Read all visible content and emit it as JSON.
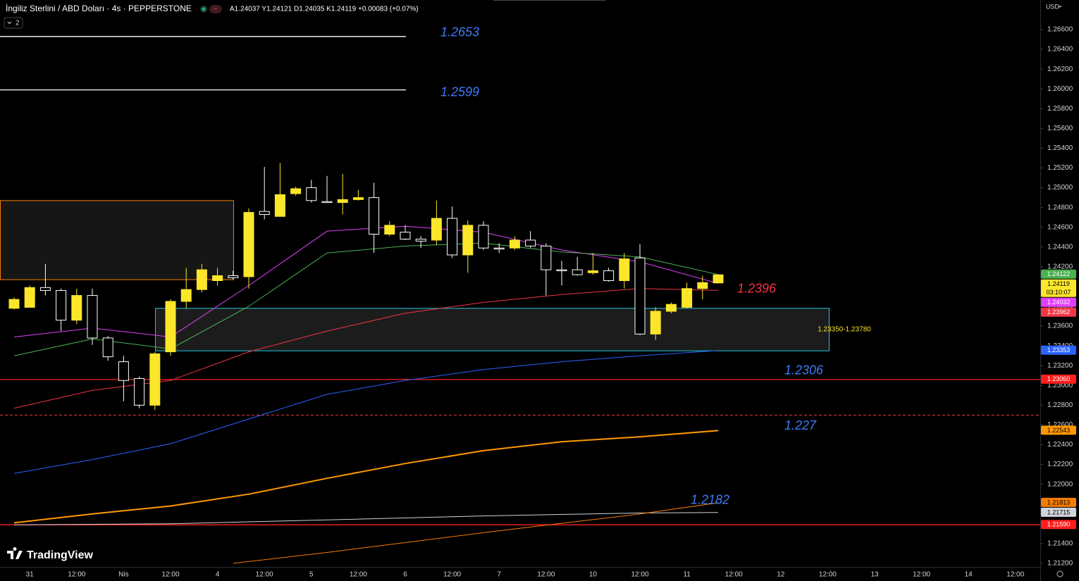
{
  "header": {
    "symbol": "İngiliz Sterlini / ABD Doları · 4s · PEPPERSTONE",
    "ohlc": "A1.24037 Y1.24121 D1.24035 K1.24119 +0.00083 (+0.07%)",
    "indicators": "2"
  },
  "currency": "USD",
  "logo": "TradingView",
  "chart_data": {
    "type": "candlestick",
    "categories": [
      null,
      "31",
      null,
      null,
      "12:00",
      null,
      null,
      "Nis",
      null,
      null,
      "12:00",
      null,
      null,
      "4",
      null,
      null,
      "12:00",
      null,
      null,
      "5",
      null,
      null,
      "12:00",
      null,
      null,
      "6",
      null,
      null,
      "12:00",
      null,
      null,
      "7",
      null,
      null,
      "12:00",
      null,
      null,
      "10",
      null,
      null,
      "12:00",
      null,
      null,
      "11",
      null,
      null,
      "12:00",
      null,
      null,
      "12",
      null,
      null,
      "12:00",
      null,
      null,
      "13",
      null,
      null,
      "12:00",
      null,
      null,
      "14",
      null,
      null,
      "12:00"
    ],
    "open": [
      1.2378,
      1.2379,
      1.2399,
      1.2396,
      1.2366,
      1.2391,
      1.2348,
      1.2324,
      1.2307,
      1.228,
      1.2334,
      1.2385,
      1.2397,
      1.2406,
      1.2411,
      1.241,
      1.2476,
      1.2471,
      1.2494,
      1.25,
      1.2486,
      1.2485,
      1.2488,
      1.249,
      1.2453,
      1.2455,
      1.2448,
      1.2447,
      1.2469,
      1.2432,
      1.2462,
      1.2439,
      1.2439,
      1.2447,
      1.2441,
      1.2417,
      1.2417,
      1.2414,
      1.2416,
      1.2406,
      1.2429,
      1.2352,
      1.2375,
      1.2379,
      1.2398,
      1.24037,
      null,
      null,
      null,
      null,
      null,
      null,
      null,
      null,
      null,
      null,
      null,
      null,
      null,
      null,
      null,
      null,
      null,
      null,
      null
    ],
    "high": [
      1.2389,
      1.2401,
      1.2423,
      1.2398,
      1.2398,
      1.2398,
      1.235,
      1.233,
      1.2309,
      1.2334,
      1.2387,
      1.2419,
      1.2423,
      1.2419,
      1.2416,
      1.2479,
      1.2521,
      1.2525,
      1.2501,
      1.2508,
      1.2512,
      1.2514,
      1.2498,
      1.2505,
      1.2466,
      1.2462,
      1.2451,
      1.2487,
      1.2481,
      1.2467,
      1.2466,
      1.2444,
      1.2451,
      1.2456,
      1.2444,
      1.2426,
      1.243,
      1.2434,
      1.2419,
      1.2434,
      1.2443,
      1.2379,
      1.2384,
      1.2404,
      1.2411,
      1.24121,
      null,
      null,
      null,
      null,
      null,
      null,
      null,
      null,
      null,
      null,
      null,
      null,
      null,
      null,
      null,
      null,
      null,
      null,
      null
    ],
    "low": [
      1.2377,
      1.2379,
      1.2391,
      1.2355,
      1.2362,
      1.2341,
      1.2325,
      1.2284,
      1.2277,
      1.2275,
      1.233,
      1.2378,
      1.2394,
      1.2401,
      1.2407,
      1.2398,
      1.2468,
      1.2471,
      1.2492,
      1.2485,
      1.2485,
      1.2473,
      1.2487,
      1.2434,
      1.2451,
      1.2447,
      1.2439,
      1.2442,
      1.2429,
      1.2414,
      1.2437,
      1.2434,
      1.2437,
      1.2439,
      1.2391,
      1.2401,
      1.2411,
      1.2412,
      1.2405,
      1.2398,
      1.2351,
      1.2346,
      1.2373,
      1.2378,
      1.2387,
      1.24035,
      null,
      null,
      null,
      null,
      null,
      null,
      null,
      null,
      null,
      null,
      null,
      null,
      null,
      null,
      null,
      null,
      null,
      null,
      null
    ],
    "close": [
      1.2387,
      1.2399,
      1.2396,
      1.2366,
      1.2391,
      1.2348,
      1.2329,
      1.2305,
      1.228,
      1.2332,
      1.2385,
      1.2397,
      1.2417,
      1.2411,
      1.2409,
      1.2475,
      1.2473,
      1.2493,
      1.2499,
      1.2487,
      1.2485,
      1.2488,
      1.249,
      1.2453,
      1.2462,
      1.2448,
      1.2446,
      1.2469,
      1.2432,
      1.2462,
      1.2439,
      1.2438,
      1.2447,
      1.2441,
      1.2417,
      1.2416,
      1.2412,
      1.2416,
      1.2406,
      1.2428,
      1.2352,
      1.2375,
      1.2382,
      1.2398,
      1.2404,
      1.24119,
      null,
      null,
      null,
      null,
      null,
      null,
      null,
      null,
      null,
      null,
      null,
      null,
      null,
      null,
      null,
      null,
      null,
      null,
      null
    ],
    "up_color": "#fbe62a",
    "down_color": "#ffffff",
    "ylim": [
      1.21164,
      1.26899
    ],
    "yticks": [
      {
        "value": 1.212,
        "label": "1.21200"
      },
      {
        "value": 1.214,
        "label": "1.21400"
      },
      {
        "value": 1.216,
        "label": "1.21600"
      },
      {
        "value": 1.218,
        "label": "1.21800"
      },
      {
        "value": 1.22,
        "label": "1.22000"
      },
      {
        "value": 1.222,
        "label": "1.22200"
      },
      {
        "value": 1.224,
        "label": "1.22400"
      },
      {
        "value": 1.226,
        "label": "1.22600"
      },
      {
        "value": 1.228,
        "label": "1.22800"
      },
      {
        "value": 1.23,
        "label": "1.23000"
      },
      {
        "value": 1.232,
        "label": "1.23200"
      },
      {
        "value": 1.234,
        "label": "1.23400"
      },
      {
        "value": 1.236,
        "label": "1.23600"
      },
      {
        "value": 1.238,
        "label": "1.23800"
      },
      {
        "value": 1.24,
        "label": "1.24000"
      },
      {
        "value": 1.242,
        "label": "1.24200"
      },
      {
        "value": 1.244,
        "label": "1.24400"
      },
      {
        "value": 1.246,
        "label": "1.24600"
      },
      {
        "value": 1.248,
        "label": "1.24800"
      },
      {
        "value": 1.25,
        "label": "1.25000"
      },
      {
        "value": 1.252,
        "label": "1.25200"
      },
      {
        "value": 1.254,
        "label": "1.25400"
      },
      {
        "value": 1.256,
        "label": "1.25600"
      },
      {
        "value": 1.258,
        "label": "1.25800"
      },
      {
        "value": 1.26,
        "label": "1.26000"
      },
      {
        "value": 1.262,
        "label": "1.26200"
      },
      {
        "value": 1.264,
        "label": "1.26400"
      },
      {
        "value": 1.266,
        "label": "1.26600"
      }
    ],
    "grid": false,
    "overlays": [
      {
        "color": "#e040fb",
        "x": [
          0,
          5,
          10,
          15,
          20,
          25,
          30,
          35,
          40,
          45
        ],
        "values": [
          1.2349,
          1.2358,
          1.2349,
          1.2401,
          1.2456,
          1.2461,
          1.2455,
          1.2437,
          1.2425,
          1.24032
        ],
        "end_label": "1.24032"
      },
      {
        "color": "#4caf50",
        "x": [
          0,
          5,
          10,
          15,
          20,
          25,
          30,
          35,
          40,
          45
        ],
        "values": [
          1.233,
          1.2347,
          1.2337,
          1.238,
          1.2434,
          1.2441,
          1.2444,
          1.2435,
          1.243,
          1.24122
        ],
        "end_label": "1.24122"
      },
      {
        "color": "#f23645",
        "x": [
          0,
          5,
          10,
          15,
          20,
          25,
          30,
          35,
          40,
          45
        ],
        "values": [
          1.2277,
          1.2295,
          1.2305,
          1.2334,
          1.2355,
          1.2373,
          1.2384,
          1.2392,
          1.2398,
          1.23962
        ],
        "end_label": "1.23962"
      },
      {
        "color": "#2962ff",
        "x": [
          0,
          5,
          10,
          15,
          20,
          25,
          30,
          35,
          40,
          45
        ],
        "values": [
          1.2211,
          1.2225,
          1.2241,
          1.2266,
          1.2291,
          1.2305,
          1.2316,
          1.2324,
          1.233,
          1.23353
        ],
        "end_label": "1.23353"
      },
      {
        "color": "#ff9800",
        "x": [
          0,
          5,
          10,
          15,
          20,
          25,
          30,
          35,
          40,
          45
        ],
        "values": [
          1.2161,
          1.217,
          1.2178,
          1.219,
          1.2206,
          1.2221,
          1.2234,
          1.2243,
          1.2248,
          1.22543
        ],
        "end_label": "1.22543"
      },
      {
        "color": "#d1d4dc",
        "x": [
          0,
          10,
          20,
          30,
          40,
          45
        ],
        "values": [
          1.2159,
          1.216,
          1.2164,
          1.2168,
          1.2171,
          1.21715
        ],
        "end_label": "1.21715"
      },
      {
        "color": "#f57c00",
        "x": [
          14,
          20,
          30,
          40,
          45
        ],
        "values": [
          1.212,
          1.2131,
          1.2151,
          1.217,
          1.21813
        ],
        "end_label": "1.21813"
      }
    ],
    "last_price": {
      "label": "1.24119",
      "countdown": "03:10:07",
      "color": "#fbe62a"
    },
    "levels": [
      {
        "value": 1.2653,
        "color": "#ffffff",
        "label_color": "#3d7bf5"
      },
      {
        "value": 1.2599,
        "color": "#ffffff",
        "label_color": "#3d7bf5"
      },
      {
        "value": 1.2306,
        "color": "#ff1e1e",
        "label_color": "#3d7bf5",
        "badge": "1.23060"
      },
      {
        "value": 1.227,
        "color": "#f23645",
        "label_color": "#3d7bf5",
        "dashed": true
      },
      {
        "value": 1.2159,
        "color": "#ff1e1e",
        "badge": "1.21590"
      }
    ],
    "annotations": [
      {
        "value": 1.2396,
        "color": "#f23645"
      },
      {
        "value": 1.2182,
        "color": "#3d7bf5"
      }
    ],
    "zones": [
      {
        "low": 1.2407,
        "high": 1.2487,
        "border": "#f57c00",
        "fill": "#161616"
      },
      {
        "low": 1.2335,
        "high": 1.2378,
        "border": "#26c6da",
        "fill": "#1c1c1c",
        "label": "1.23350-1.23780",
        "label_color": "#fbe62a"
      }
    ]
  }
}
